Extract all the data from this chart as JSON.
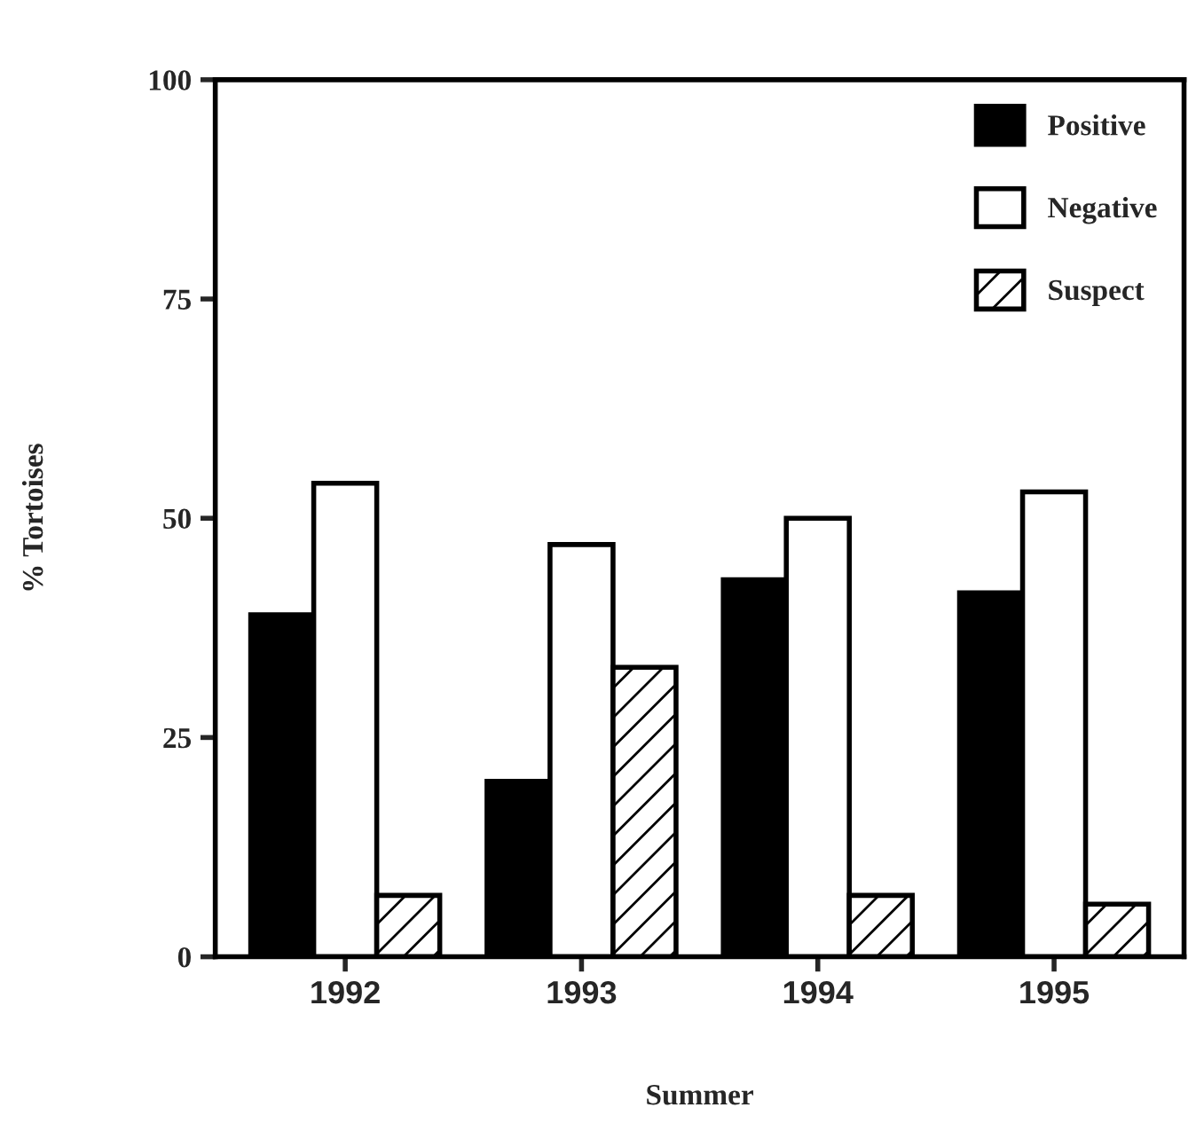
{
  "chart_data": {
    "type": "bar",
    "xlabel": "Summer",
    "ylabel": "% Tortoises",
    "categories": [
      "1992",
      "1993",
      "1994",
      "1995"
    ],
    "series": [
      {
        "name": "Positive",
        "color": "#000000",
        "values": [
          39,
          20,
          43,
          41.5
        ]
      },
      {
        "name": "Negative",
        "color": "#ffffff",
        "values": [
          54,
          47,
          50,
          53
        ]
      },
      {
        "name": "Suspect",
        "color": "#000000",
        "values": [
          7,
          33,
          7,
          6
        ]
      }
    ],
    "ylim": [
      0,
      100
    ],
    "yticks": [
      0,
      25,
      50,
      75,
      100
    ],
    "grid": false,
    "legend": "top right"
  }
}
